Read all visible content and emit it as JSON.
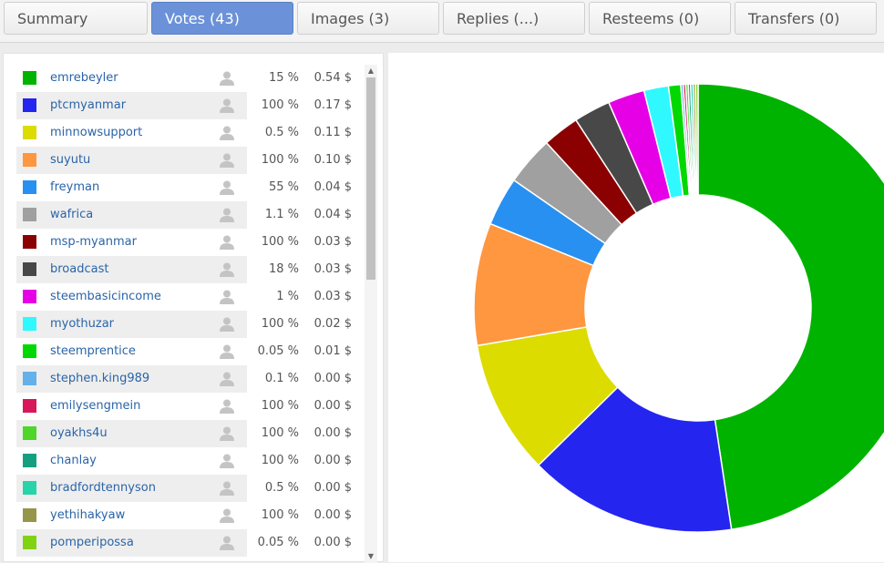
{
  "tabs": [
    {
      "label": "Summary",
      "active": false
    },
    {
      "label": "Votes (43)",
      "active": true
    },
    {
      "label": "Images (3)",
      "active": false
    },
    {
      "label": "Replies (...)",
      "active": false
    },
    {
      "label": "Resteems (0)",
      "active": false
    },
    {
      "label": "Transfers (0)",
      "active": false
    }
  ],
  "votes": [
    {
      "name": "emrebeyler",
      "pct": "15 %",
      "value": "0.54 $",
      "color": "#00b300"
    },
    {
      "name": "ptcmyanmar",
      "pct": "100 %",
      "value": "0.17 $",
      "color": "#2525f0"
    },
    {
      "name": "minnowsupport",
      "pct": "0.5 %",
      "value": "0.11 $",
      "color": "#dcdc00"
    },
    {
      "name": "suyutu",
      "pct": "100 %",
      "value": "0.10 $",
      "color": "#ff9640"
    },
    {
      "name": "freyman",
      "pct": "55 %",
      "value": "0.04 $",
      "color": "#2890f0"
    },
    {
      "name": "wafrica",
      "pct": "1.1 %",
      "value": "0.04 $",
      "color": "#a0a0a0"
    },
    {
      "name": "msp-myanmar",
      "pct": "100 %",
      "value": "0.03 $",
      "color": "#8b0000"
    },
    {
      "name": "broadcast",
      "pct": "18 %",
      "value": "0.03 $",
      "color": "#484848"
    },
    {
      "name": "steembasicincome",
      "pct": "1 %",
      "value": "0.03 $",
      "color": "#e600e6"
    },
    {
      "name": "myothuzar",
      "pct": "100 %",
      "value": "0.02 $",
      "color": "#30f8ff"
    },
    {
      "name": "steemprentice",
      "pct": "0.05 %",
      "value": "0.01 $",
      "color": "#00d800"
    },
    {
      "name": "stephen.king989",
      "pct": "0.1 %",
      "value": "0.00 $",
      "color": "#64b0ea"
    },
    {
      "name": "emilysengmein",
      "pct": "100 %",
      "value": "0.00 $",
      "color": "#d8175a"
    },
    {
      "name": "oyakhs4u",
      "pct": "100 %",
      "value": "0.00 $",
      "color": "#4ed62a"
    },
    {
      "name": "chanlay",
      "pct": "100 %",
      "value": "0.00 $",
      "color": "#14a080"
    },
    {
      "name": "bradfordtennyson",
      "pct": "0.5 %",
      "value": "0.00 $",
      "color": "#28d4a8"
    },
    {
      "name": "yethihakyaw",
      "pct": "100 %",
      "value": "0.00 $",
      "color": "#96964a"
    },
    {
      "name": "pomperipossa",
      "pct": "0.05 %",
      "value": "0.00 $",
      "color": "#82d214"
    }
  ],
  "chart_data": {
    "type": "pie",
    "style": "donut",
    "title": "",
    "series": [
      {
        "name": "emrebeyler",
        "value": 0.54,
        "color": "#00b300"
      },
      {
        "name": "ptcmyanmar",
        "value": 0.17,
        "color": "#2525f0"
      },
      {
        "name": "minnowsupport",
        "value": 0.11,
        "color": "#dcdc00"
      },
      {
        "name": "suyutu",
        "value": 0.1,
        "color": "#ff9640"
      },
      {
        "name": "freyman",
        "value": 0.04,
        "color": "#2890f0"
      },
      {
        "name": "wafrica",
        "value": 0.04,
        "color": "#a0a0a0"
      },
      {
        "name": "msp-myanmar",
        "value": 0.03,
        "color": "#8b0000"
      },
      {
        "name": "broadcast",
        "value": 0.03,
        "color": "#484848"
      },
      {
        "name": "steembasicincome",
        "value": 0.03,
        "color": "#e600e6"
      },
      {
        "name": "myothuzar",
        "value": 0.02,
        "color": "#30f8ff"
      },
      {
        "name": "steemprentice",
        "value": 0.01,
        "color": "#00d800"
      },
      {
        "name": "stephen.king989",
        "value": 0.002,
        "color": "#64b0ea"
      },
      {
        "name": "emilysengmein",
        "value": 0.002,
        "color": "#d8175a"
      },
      {
        "name": "oyakhs4u",
        "value": 0.002,
        "color": "#4ed62a"
      },
      {
        "name": "chanlay",
        "value": 0.002,
        "color": "#14a080"
      },
      {
        "name": "bradfordtennyson",
        "value": 0.002,
        "color": "#28d4a8"
      },
      {
        "name": "yethihakyaw",
        "value": 0.002,
        "color": "#96964a"
      },
      {
        "name": "pomperipossa",
        "value": 0.002,
        "color": "#82d214"
      }
    ]
  }
}
